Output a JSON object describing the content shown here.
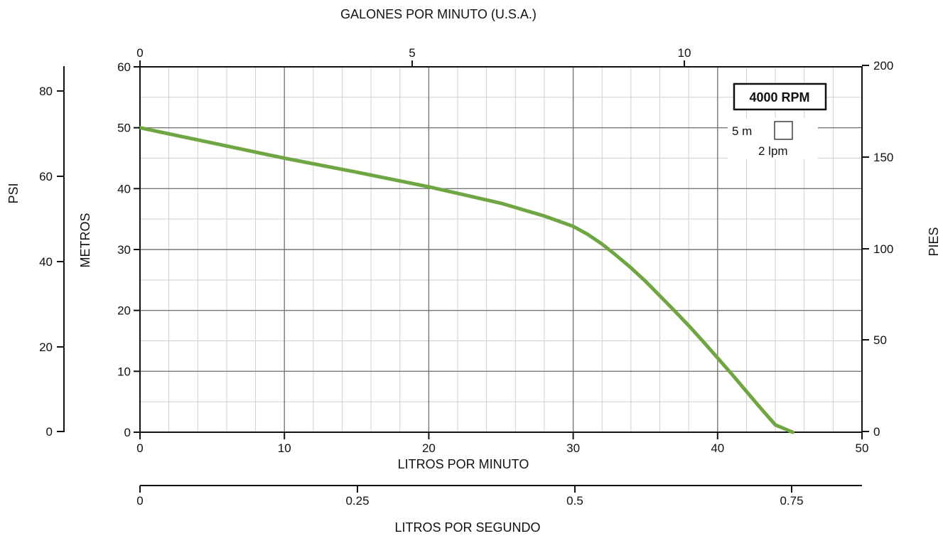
{
  "chart_data": {
    "type": "line",
    "title": "",
    "axes": {
      "bottom": {
        "label": "LITROS POR MINUTO",
        "min": 0,
        "max": 50,
        "ticks": [
          0,
          10,
          20,
          30,
          40,
          50
        ]
      },
      "top": {
        "label": "GALONES POR MINUTO (U.S.A.)",
        "ticks": [
          0,
          5,
          10
        ]
      },
      "left": {
        "label": "METROS",
        "min": 0,
        "max": 60,
        "ticks": [
          0,
          10,
          20,
          30,
          40,
          50,
          60
        ]
      },
      "left_outer": {
        "label": "PSI",
        "ticks": [
          0,
          20,
          40,
          60,
          80
        ]
      },
      "right": {
        "label": "PIES",
        "ticks": [
          0,
          50,
          100,
          150,
          200
        ]
      },
      "bottom_outer": {
        "label": "LITROS POR SEGUNDO",
        "ticks": [
          "0",
          "0.25",
          "0.5",
          "0.75"
        ]
      }
    },
    "series": [
      {
        "name": "",
        "color": "#6fa542",
        "x": [
          0,
          5,
          10,
          15,
          20,
          25,
          28,
          30,
          31,
          32,
          33,
          34,
          35,
          36,
          37,
          38,
          39,
          40,
          41,
          42,
          43,
          44,
          45.2
        ],
        "y": [
          50,
          47.5,
          45,
          42.7,
          40.3,
          37.6,
          35.5,
          33.8,
          32.5,
          30.9,
          29,
          27,
          24.8,
          22.4,
          20,
          17.5,
          14.9,
          12.2,
          9.5,
          6.7,
          3.9,
          1.2,
          0
        ]
      }
    ],
    "grid": true,
    "annotations": {
      "rpm_badge": "4000 RPM",
      "scale_vertical": "5 m",
      "scale_horizontal": "2 lpm"
    }
  }
}
